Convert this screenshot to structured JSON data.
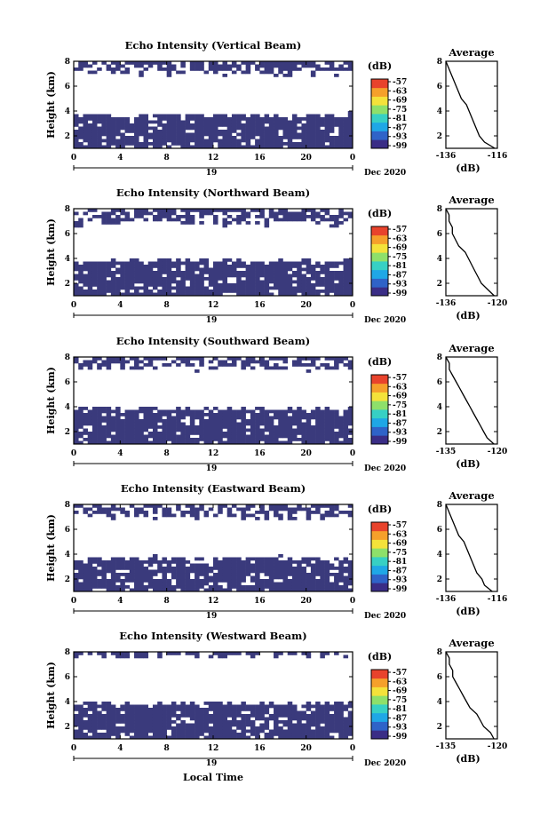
{
  "figure": {
    "xlabel": "Local Time",
    "date_label": "Dec 2020",
    "day_label": "19",
    "colorbar_unit": "(dB)",
    "colorbar_ticks": [
      "-57",
      "-63",
      "-69",
      "-75",
      "-81",
      "-87",
      "-93",
      "-99"
    ],
    "colorbar_colors": [
      "#3a2d86",
      "#2f63c8",
      "#1fa7e6",
      "#37d0c4",
      "#8ee06a",
      "#f4e23a",
      "#f5a02b",
      "#e8432c"
    ],
    "fill_color": "#3a3a7c"
  },
  "chart_data": [
    {
      "type": "heatmap",
      "title": "Echo Intensity (Vertical Beam)",
      "ylabel": "Height (km)",
      "xlim": [
        0,
        24
      ],
      "ylim": [
        1,
        8
      ],
      "xticks": [
        "0",
        "4",
        "8",
        "12",
        "16",
        "20",
        "0"
      ],
      "yticks": [
        "2",
        "4",
        "6",
        "8"
      ],
      "grid": false,
      "low_echo_top_km": 3.7,
      "upper_echo_base_km": 6.9,
      "profile": {
        "title": "Average",
        "xlabel": "(dB)",
        "xticks": [
          "-136",
          "-116"
        ],
        "xlim": [
          -136,
          -116
        ],
        "yticks": [
          "2",
          "4",
          "6",
          "8"
        ],
        "heights": [
          1.0,
          1.5,
          2.0,
          2.5,
          3.0,
          3.5,
          4.0,
          4.5,
          5.0,
          5.5,
          6.0,
          6.5,
          7.0,
          7.5,
          8.0
        ],
        "values": [
          -117,
          -121,
          -123,
          -124,
          -125,
          -126,
          -127,
          -128,
          -130,
          -131,
          -132,
          -133,
          -134,
          -135,
          -136
        ]
      }
    },
    {
      "type": "heatmap",
      "title": "Echo Intensity (Northward Beam)",
      "ylabel": "Height (km)",
      "xlim": [
        0,
        24
      ],
      "ylim": [
        1,
        8
      ],
      "xticks": [
        "0",
        "4",
        "8",
        "12",
        "16",
        "20",
        "0"
      ],
      "yticks": [
        "2",
        "4",
        "6",
        "8"
      ],
      "grid": false,
      "low_echo_top_km": 3.8,
      "upper_echo_base_km": 6.7,
      "profile": {
        "title": "Average",
        "xlabel": "(dB)",
        "xticks": [
          "-136",
          "-120"
        ],
        "xlim": [
          -136,
          -120
        ],
        "yticks": [
          "2",
          "4",
          "6",
          "8"
        ],
        "heights": [
          1.0,
          1.5,
          2.0,
          2.5,
          3.0,
          3.5,
          4.0,
          4.5,
          5.0,
          5.5,
          6.0,
          6.5,
          7.0,
          7.5,
          8.0
        ],
        "values": [
          -121,
          -123,
          -125,
          -126,
          -127,
          -128,
          -129,
          -130,
          -132,
          -133,
          -134,
          -134,
          -135,
          -135,
          -136
        ]
      }
    },
    {
      "type": "heatmap",
      "title": "Echo Intensity (Southward Beam)",
      "ylabel": "Height (km)",
      "xlim": [
        0,
        24
      ],
      "ylim": [
        1,
        8
      ],
      "xticks": [
        "0",
        "4",
        "8",
        "12",
        "16",
        "20",
        "0"
      ],
      "yticks": [
        "2",
        "4",
        "6",
        "8"
      ],
      "grid": false,
      "low_echo_top_km": 3.9,
      "upper_echo_base_km": 7.0,
      "profile": {
        "title": "Average",
        "xlabel": "(dB)",
        "xticks": [
          "-135",
          "-120"
        ],
        "xlim": [
          -135,
          -120
        ],
        "yticks": [
          "2",
          "4",
          "6",
          "8"
        ],
        "heights": [
          1.0,
          1.5,
          2.0,
          2.5,
          3.0,
          3.5,
          4.0,
          4.5,
          5.0,
          5.5,
          6.0,
          6.5,
          7.0,
          7.5,
          8.0
        ],
        "values": [
          -121,
          -123,
          -124,
          -125,
          -126,
          -127,
          -128,
          -129,
          -130,
          -131,
          -132,
          -133,
          -134,
          -134,
          -135
        ]
      }
    },
    {
      "type": "heatmap",
      "title": "Echo Intensity (Eastward Beam)",
      "ylabel": "Height (km)",
      "xlim": [
        0,
        24
      ],
      "ylim": [
        1,
        8
      ],
      "xticks": [
        "0",
        "4",
        "8",
        "12",
        "16",
        "20",
        "0"
      ],
      "yticks": [
        "2",
        "4",
        "6",
        "8"
      ],
      "grid": false,
      "low_echo_top_km": 3.7,
      "upper_echo_base_km": 6.9,
      "profile": {
        "title": "Average",
        "xlabel": "(dB)",
        "xticks": [
          "-136",
          "-116"
        ],
        "xlim": [
          -136,
          -116
        ],
        "yticks": [
          "2",
          "4",
          "6",
          "8"
        ],
        "heights": [
          1.0,
          1.5,
          2.0,
          2.5,
          3.0,
          3.5,
          4.0,
          4.5,
          5.0,
          5.5,
          6.0,
          6.5,
          7.0,
          7.5,
          8.0
        ],
        "values": [
          -118,
          -121,
          -122,
          -124,
          -125,
          -126,
          -127,
          -128,
          -129,
          -131,
          -132,
          -133,
          -134,
          -135,
          -136
        ]
      }
    },
    {
      "type": "heatmap",
      "title": "Echo Intensity (Westward Beam)",
      "ylabel": "Height (km)",
      "xlim": [
        0,
        24
      ],
      "ylim": [
        1,
        8
      ],
      "xticks": [
        "0",
        "4",
        "8",
        "12",
        "16",
        "20",
        "0"
      ],
      "yticks": [
        "2",
        "4",
        "6",
        "8"
      ],
      "grid": false,
      "low_echo_top_km": 3.9,
      "upper_echo_base_km": 7.6,
      "profile": {
        "title": "Average",
        "xlabel": "(dB)",
        "xticks": [
          "-135",
          "-120"
        ],
        "xlim": [
          -135,
          -120
        ],
        "yticks": [
          "2",
          "4",
          "6",
          "8"
        ],
        "heights": [
          1.0,
          1.5,
          2.0,
          2.5,
          3.0,
          3.5,
          4.0,
          4.5,
          5.0,
          5.5,
          6.0,
          6.5,
          7.0,
          7.5,
          8.0
        ],
        "values": [
          -121,
          -122,
          -124,
          -125,
          -126,
          -128,
          -129,
          -130,
          -131,
          -132,
          -133,
          -133,
          -134,
          -134,
          -135
        ]
      }
    }
  ]
}
